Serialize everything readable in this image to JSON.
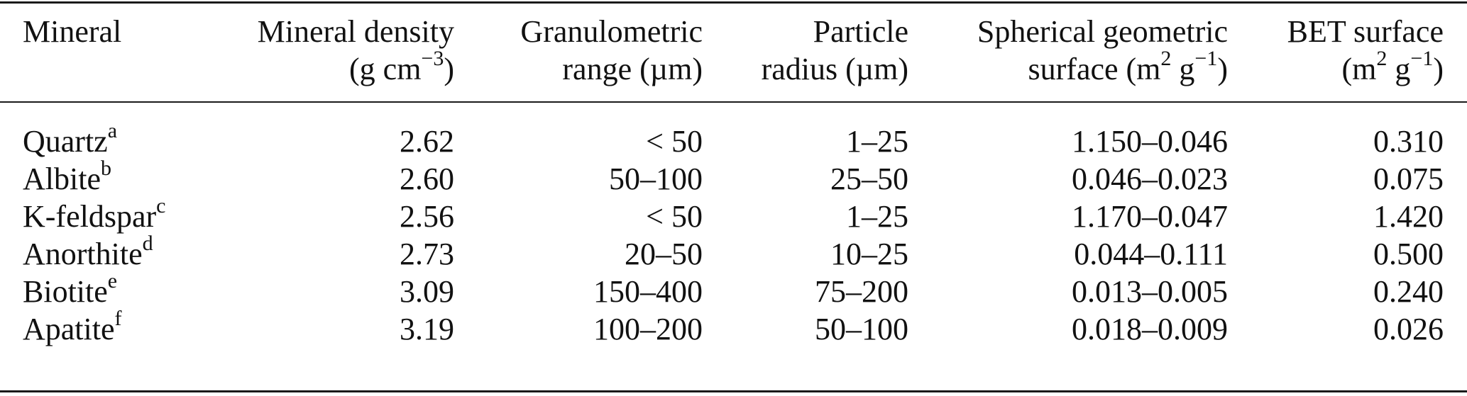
{
  "table": {
    "headers": [
      {
        "line1": "Mineral",
        "line2": "",
        "sup2": "",
        "tail2": "",
        "sup2b": "",
        "tail2b": ""
      },
      {
        "line1": "Mineral density",
        "line2": "(g cm",
        "sup2": "−3",
        "tail2": ")",
        "sup2b": "",
        "tail2b": ""
      },
      {
        "line1": "Granulometric",
        "line2": "range (µm)",
        "sup2": "",
        "tail2": "",
        "sup2b": "",
        "tail2b": ""
      },
      {
        "line1": "Particle",
        "line2": "radius (µm)",
        "sup2": "",
        "tail2": "",
        "sup2b": "",
        "tail2b": ""
      },
      {
        "line1": "Spherical geometric",
        "line2": "surface (m",
        "sup2": "2",
        "tail2": " g",
        "sup2b": "−1",
        "tail2b": ")"
      },
      {
        "line1": "BET surface",
        "line2": "(m",
        "sup2": "2",
        "tail2": " g",
        "sup2b": "−1",
        "tail2b": ")"
      }
    ],
    "rows": [
      {
        "mineral": "Quartz",
        "note": "a",
        "density": "2.62",
        "range": "< 50",
        "radius": "1–25",
        "spherical": "1.150–0.046",
        "bet": "0.310"
      },
      {
        "mineral": "Albite",
        "note": "b",
        "density": "2.60",
        "range": "50–100",
        "radius": "25–50",
        "spherical": "0.046–0.023",
        "bet": "0.075"
      },
      {
        "mineral": "K-feldspar",
        "note": "c",
        "density": "2.56",
        "range": "< 50",
        "radius": "1–25",
        "spherical": "1.170–0.047",
        "bet": "1.420"
      },
      {
        "mineral": "Anorthite",
        "note": "d",
        "density": "2.73",
        "range": "20–50",
        "radius": "10–25",
        "spherical": "0.044–0.111",
        "bet": "0.500"
      },
      {
        "mineral": "Biotite",
        "note": "e",
        "density": "3.09",
        "range": "150–400",
        "radius": "75–200",
        "spherical": "0.013–0.005",
        "bet": "0.240"
      },
      {
        "mineral": "Apatite",
        "note": "f",
        "density": "3.19",
        "range": "100–200",
        "radius": "50–100",
        "spherical": "0.018–0.009",
        "bet": "0.026"
      }
    ]
  }
}
